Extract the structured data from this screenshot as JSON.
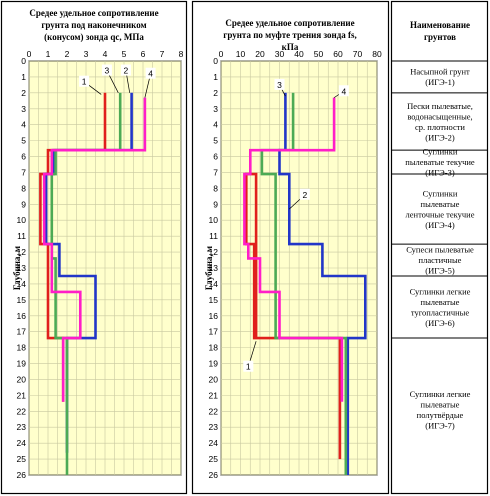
{
  "chart_data": [
    {
      "type": "line",
      "title_lines": [
        "Средее удельное сопротивление",
        "грунта под наконечником",
        "(конусом) зонда qc, МПа"
      ],
      "ylabel": "Глубина, м",
      "xlim": [
        0,
        8
      ],
      "ylim": [
        0,
        26
      ],
      "x_ticks": [
        "0",
        "1",
        "2",
        "3",
        "4",
        "5",
        "6",
        "7",
        "8"
      ],
      "y_ticks": [
        "0",
        "1",
        "2",
        "3",
        "4",
        "5",
        "6",
        "7",
        "8",
        "9",
        "10",
        "11",
        "12",
        "13",
        "14",
        "15",
        "16",
        "17",
        "18",
        "19",
        "20",
        "21",
        "22",
        "23",
        "24",
        "25",
        "26"
      ],
      "grid": true,
      "series": [
        {
          "name": "1",
          "color": "#e0201c",
          "points": [
            [
              4.0,
              2.0
            ],
            [
              4.0,
              5.6
            ],
            [
              1.0,
              5.6
            ],
            [
              1.0,
              7.1
            ],
            [
              0.6,
              7.1
            ],
            [
              0.6,
              11.5
            ],
            [
              1.0,
              11.5
            ],
            [
              1.0,
              17.4
            ],
            [
              1.8,
              17.4
            ],
            [
              1.8,
              21.4
            ]
          ]
        },
        {
          "name": "2",
          "color": "#2236c8",
          "points": [
            [
              5.4,
              2.0
            ],
            [
              5.4,
              5.6
            ],
            [
              1.3,
              5.6
            ],
            [
              1.3,
              7.1
            ],
            [
              0.9,
              7.1
            ],
            [
              0.9,
              11.5
            ],
            [
              1.6,
              11.5
            ],
            [
              1.6,
              13.5
            ],
            [
              3.5,
              13.5
            ],
            [
              3.5,
              17.4
            ],
            [
              2.0,
              17.4
            ],
            [
              2.0,
              24.6
            ]
          ]
        },
        {
          "name": "3",
          "color": "#4caa55",
          "points": [
            [
              4.8,
              2.0
            ],
            [
              4.8,
              5.6
            ],
            [
              1.4,
              5.6
            ],
            [
              1.4,
              7.1
            ],
            [
              1.2,
              7.1
            ],
            [
              1.2,
              12.4
            ],
            [
              1.4,
              12.4
            ],
            [
              1.4,
              17.4
            ],
            [
              2.0,
              17.4
            ],
            [
              2.0,
              26.0
            ]
          ]
        },
        {
          "name": "4",
          "color": "#ff1ec8",
          "points": [
            [
              6.1,
              2.3
            ],
            [
              6.1,
              5.6
            ],
            [
              1.2,
              5.6
            ],
            [
              1.2,
              7.1
            ],
            [
              0.8,
              7.1
            ],
            [
              0.8,
              11.5
            ],
            [
              1.2,
              11.5
            ],
            [
              1.2,
              14.5
            ],
            [
              2.7,
              14.5
            ],
            [
              2.7,
              17.4
            ],
            [
              1.8,
              17.4
            ],
            [
              1.8,
              21.4
            ]
          ]
        }
      ],
      "labels": [
        {
          "text": "1",
          "x": 2.9,
          "y": 1.3,
          "to": [
            3.8,
            2.1
          ]
        },
        {
          "text": "2",
          "x": 5.1,
          "y": 0.6,
          "to": [
            5.3,
            2.0
          ]
        },
        {
          "text": "3",
          "x": 4.1,
          "y": 0.6,
          "to": [
            4.7,
            2.0
          ]
        },
        {
          "text": "4",
          "x": 6.4,
          "y": 0.8,
          "to": [
            6.1,
            2.3
          ]
        }
      ]
    },
    {
      "type": "line",
      "title_lines": [
        "Средее удельное сопротивление",
        "грунта по муфте трения зонда fs,",
        "кПа"
      ],
      "ylabel": "Глубина, м",
      "xlim": [
        0,
        80
      ],
      "ylim": [
        0,
        26
      ],
      "x_ticks": [
        "0",
        "10",
        "20",
        "30",
        "40",
        "50",
        "60",
        "70",
        "80"
      ],
      "y_ticks": [
        "0",
        "1",
        "2",
        "3",
        "4",
        "5",
        "6",
        "7",
        "8",
        "9",
        "10",
        "11",
        "12",
        "13",
        "14",
        "15",
        "16",
        "17",
        "18",
        "19",
        "20",
        "21",
        "22",
        "23",
        "24",
        "25",
        "26"
      ],
      "grid": true,
      "series": [
        {
          "name": "1",
          "color": "#e0201c",
          "points": [
            [
              18.0,
              17.4
            ],
            [
              18.0,
              7.1
            ],
            [
              13.0,
              7.1
            ],
            [
              13.0,
              11.5
            ],
            [
              17.0,
              11.5
            ],
            [
              17.0,
              17.4
            ],
            [
              61.0,
              17.4
            ],
            [
              61.0,
              25.0
            ]
          ]
        },
        {
          "name": "2",
          "color": "#2236c8",
          "points": [
            [
              33.0,
              2.0
            ],
            [
              33.0,
              5.6
            ],
            [
              30.0,
              5.6
            ],
            [
              30.0,
              7.1
            ],
            [
              35.0,
              7.1
            ],
            [
              35.0,
              11.5
            ],
            [
              52.0,
              11.5
            ],
            [
              52.0,
              13.5
            ],
            [
              74.0,
              13.5
            ],
            [
              74.0,
              17.4
            ],
            [
              65.0,
              17.4
            ],
            [
              65.0,
              26.0
            ]
          ]
        },
        {
          "name": "3",
          "color": "#4caa55",
          "points": [
            [
              37.0,
              2.0
            ],
            [
              37.0,
              5.6
            ],
            [
              21.0,
              5.6
            ],
            [
              21.0,
              7.1
            ],
            [
              28.0,
              7.1
            ],
            [
              28.0,
              17.4
            ],
            [
              64.0,
              17.4
            ],
            [
              64.0,
              26.0
            ]
          ]
        },
        {
          "name": "4",
          "color": "#ff1ec8",
          "points": [
            [
              58.0,
              2.3
            ],
            [
              58.0,
              5.6
            ],
            [
              15.0,
              5.6
            ],
            [
              15.0,
              7.1
            ],
            [
              12.0,
              7.1
            ],
            [
              12.0,
              11.5
            ],
            [
              14.0,
              11.5
            ],
            [
              14.0,
              12.4
            ],
            [
              20.0,
              12.4
            ],
            [
              20.0,
              14.5
            ],
            [
              30.0,
              14.5
            ],
            [
              30.0,
              17.4
            ],
            [
              62.0,
              17.4
            ],
            [
              62.0,
              21.4
            ]
          ]
        }
      ],
      "labels": [
        {
          "text": "1",
          "x": 14.0,
          "y": 19.2,
          "to": [
            18.0,
            17.6
          ]
        },
        {
          "text": "2",
          "x": 43.0,
          "y": 8.4,
          "to": [
            35.0,
            9.3
          ]
        },
        {
          "text": "3",
          "x": 30.0,
          "y": 1.5,
          "to": [
            33.0,
            2.2
          ]
        },
        {
          "text": "4",
          "x": 63.0,
          "y": 1.9,
          "to": [
            58.0,
            2.3
          ]
        }
      ]
    }
  ],
  "soil_table": {
    "header": [
      "Наименование",
      "грунтов"
    ],
    "layers": [
      {
        "from": 0.0,
        "to": 2.0,
        "lines": [
          "Насыпной грунт",
          "(ИГЭ-1)"
        ]
      },
      {
        "from": 2.0,
        "to": 5.6,
        "lines": [
          "Пески пылеватые,",
          "водонасыщенные,",
          "ср. плотности",
          "(ИГЭ-2)"
        ]
      },
      {
        "from": 5.6,
        "to": 7.1,
        "lines": [
          "Суглинки",
          "пылеватые текучие",
          "(ИГЭ-3)"
        ]
      },
      {
        "from": 7.1,
        "to": 11.5,
        "lines": [
          "Суглинки",
          "пылеватые",
          "ленточные текучие",
          "(ИГЭ-4)"
        ]
      },
      {
        "from": 11.5,
        "to": 13.5,
        "lines": [
          "Супеси пылеватые",
          "пластичные",
          "(ИГЭ-5)"
        ]
      },
      {
        "from": 13.5,
        "to": 17.4,
        "lines": [
          "Суглинки легкие",
          "пылеватые",
          "тугопластичные",
          "(ИГЭ-6)"
        ]
      },
      {
        "from": 17.4,
        "to": 26.4,
        "lines": [
          "Суглинки легкие",
          "пылеватые",
          "полутвёрдые",
          "(ИГЭ-7)"
        ]
      }
    ]
  }
}
